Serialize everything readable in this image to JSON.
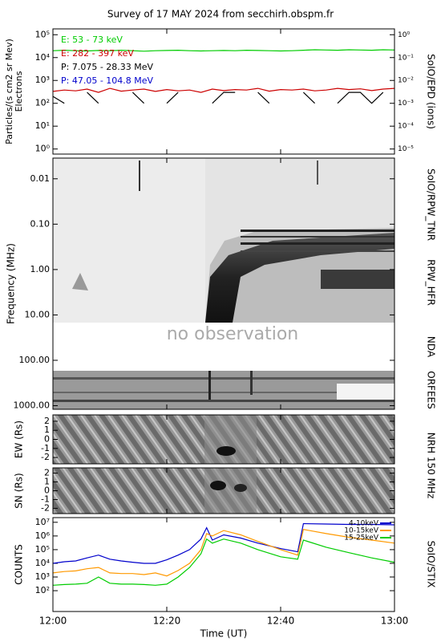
{
  "title": "Survey of 17 MAY 2024 from secchirh.obspm.fr",
  "chart_data": [
    {
      "type": "line",
      "ylabel": "Particles/(s cm2 sr Mev)",
      "ylabel2": "Electrons",
      "y2label": "SoIO/EPD (ions)",
      "ylog": true,
      "ylim": [
        0.6,
        180000
      ],
      "yticks": [
        {
          "value": 1,
          "label": "10⁰"
        },
        {
          "value": 10,
          "label": "10¹"
        },
        {
          "value": 100,
          "label": "10²"
        },
        {
          "value": 1000,
          "label": "10³"
        },
        {
          "value": 10000,
          "label": "10⁴"
        },
        {
          "value": 100000,
          "label": "10⁵"
        }
      ],
      "y2lim": [
        6e-06,
        1.8
      ],
      "y2ticks": [
        {
          "value": 1e-05,
          "label": "10⁻⁵"
        },
        {
          "value": 0.0001,
          "label": "10⁻⁴"
        },
        {
          "value": 0.001,
          "label": "10⁻³"
        },
        {
          "value": 0.01,
          "label": "10⁻²"
        },
        {
          "value": 0.1,
          "label": "10⁻¹"
        },
        {
          "value": 1,
          "label": "10⁰"
        }
      ],
      "xlim": [
        "12:00",
        "13:00"
      ],
      "x": [
        "12:00",
        "12:02",
        "12:04",
        "12:06",
        "12:08",
        "12:10",
        "12:12",
        "12:14",
        "12:16",
        "12:18",
        "12:20",
        "12:22",
        "12:24",
        "12:26",
        "12:28",
        "12:30",
        "12:32",
        "12:34",
        "12:36",
        "12:38",
        "12:40",
        "12:42",
        "12:44",
        "12:46",
        "12:48",
        "12:50",
        "12:52",
        "12:54",
        "12:56",
        "12:58",
        "13:00"
      ],
      "series": [
        {
          "name": "E: 53 - 73 keV",
          "color": "#00cc00",
          "values": [
            20000,
            21000,
            20000,
            19500,
            20500,
            20000,
            21000,
            20000,
            19000,
            20000,
            20500,
            21000,
            20000,
            19500,
            20000,
            20500,
            20000,
            21000,
            20500,
            20000,
            19500,
            20000,
            21000,
            22000,
            21500,
            21000,
            22000,
            21500,
            21000,
            22000,
            21500
          ]
        },
        {
          "name": "E: 282 - 397 keV",
          "color": "#cc0000",
          "values": [
            330,
            380,
            350,
            420,
            300,
            450,
            340,
            380,
            420,
            330,
            400,
            350,
            380,
            300,
            420,
            360,
            400,
            380,
            450,
            340,
            400,
            380,
            420,
            350,
            380,
            450,
            400,
            430,
            360,
            420,
            450
          ]
        },
        {
          "name": "P: 7.075 - 28.33 MeV",
          "color": "#000000",
          "axis": "y2",
          "values": [
            0.002,
            0.001,
            null,
            0.003,
            0.001,
            null,
            null,
            0.003,
            0.001,
            null,
            0.001,
            0.003,
            null,
            null,
            0.001,
            0.003,
            0.003,
            null,
            0.003,
            0.001,
            null,
            null,
            0.003,
            0.001,
            null,
            0.001,
            0.003,
            0.003,
            0.001,
            0.003,
            null
          ]
        },
        {
          "name": "P: 47.05 - 104.8 MeV",
          "color": "#0000cc",
          "axis": "y2",
          "values": [
            null,
            null,
            null,
            null,
            null,
            null,
            null,
            null,
            null,
            null,
            null,
            null,
            null,
            null,
            null,
            null,
            null,
            null,
            null,
            null,
            null,
            null,
            null,
            null,
            null,
            null,
            null,
            null,
            null,
            null,
            null
          ]
        }
      ]
    },
    {
      "type": "spectrogram",
      "ylabel": "Frequency (MHz)",
      "ylog": true,
      "ylim": [
        1200,
        0.0035
      ],
      "yticks": [
        0.01,
        {
          "value": 0.1,
          "label": "0.10"
        },
        {
          "value": 1,
          "label": "1.00"
        },
        {
          "value": 10,
          "label": "10.00"
        },
        {
          "value": 100,
          "label": "100.00"
        },
        {
          "value": 1000,
          "label": "1000.00"
        }
      ],
      "instruments": [
        "SoIO/RPW_TNR",
        "RPW_HFR",
        "NDA",
        "ORFEES"
      ],
      "annotation": "no observation"
    },
    {
      "type": "heatmap",
      "ylabel": "EW (Rs)",
      "instrument": "NRH 150 MHz",
      "ylim": [
        -2.7,
        2.7
      ],
      "yticks": [
        2,
        1,
        0,
        -1,
        -2
      ]
    },
    {
      "type": "heatmap",
      "ylabel": "SN (Rs)",
      "ylim": [
        -2.6,
        2.6
      ],
      "yticks": [
        2,
        1,
        0,
        -1,
        -2
      ]
    },
    {
      "type": "line",
      "ylabel": "COUNTS",
      "y2label": "SoIO/STIX",
      "ylog": true,
      "ylim": [
        3,
        22000000
      ],
      "yticks": [
        {
          "value": 100,
          "label": "10²"
        },
        {
          "value": 1000,
          "label": "10³"
        },
        {
          "value": 10000,
          "label": "10⁴"
        },
        {
          "value": 100000,
          "label": "10⁵"
        },
        {
          "value": 1000000,
          "label": "10⁶"
        },
        {
          "value": 10000000,
          "label": "10⁷"
        }
      ],
      "xlim": [
        "12:00",
        "13:00"
      ],
      "xticks": [
        "12:00",
        "12:20",
        "12:40",
        "13:00"
      ],
      "xlabel": "Time (UT)",
      "legend": "upper right",
      "x": [
        "12:00",
        "12:02",
        "12:04",
        "12:06",
        "12:08",
        "12:10",
        "12:12",
        "12:14",
        "12:16",
        "12:18",
        "12:20",
        "12:22",
        "12:24",
        "12:26",
        "12:27",
        "12:28",
        "12:30",
        "12:33",
        "12:36",
        "12:40",
        "12:43",
        "12:44",
        "12:48",
        "12:52",
        "12:56",
        "13:00"
      ],
      "series": [
        {
          "name": "4-10keV",
          "color": "#0000cc",
          "values": [
            10000,
            13000,
            15000,
            25000,
            40000,
            20000,
            15000,
            12000,
            10000,
            10000,
            18000,
            40000,
            100000,
            600000,
            4000000,
            500000,
            1200000,
            700000,
            300000,
            120000,
            70000,
            8000000,
            7500000,
            7000000,
            7000000,
            6500000
          ]
        },
        {
          "name": "10-15keV",
          "color": "#ff9900",
          "values": [
            2000,
            2500,
            2800,
            4000,
            5000,
            2000,
            1800,
            1800,
            1500,
            2000,
            1200,
            3000,
            10000,
            100000,
            1500000,
            1000000,
            2500000,
            1200000,
            400000,
            100000,
            40000,
            3000000,
            1500000,
            800000,
            500000,
            300000
          ]
        },
        {
          "name": "15-25keV",
          "color": "#00cc00",
          "values": [
            250,
            280,
            300,
            350,
            1000,
            350,
            300,
            300,
            280,
            250,
            300,
            1000,
            5000,
            50000,
            600000,
            300000,
            600000,
            300000,
            100000,
            30000,
            20000,
            500000,
            150000,
            60000,
            25000,
            12000
          ]
        }
      ]
    }
  ]
}
